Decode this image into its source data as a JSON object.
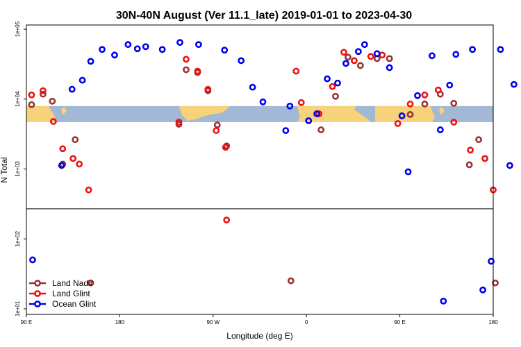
{
  "chart_data": {
    "type": "scatter",
    "title": "30N-40N August (Ver 11.1_late)   2019-01-01 to 2023-04-30",
    "xlabel": "Longitude (deg E)",
    "ylabel": "N Total",
    "xlim": [
      90,
      540
    ],
    "ylim_log10": [
      0.92,
      5.06
    ],
    "y_scale": "log",
    "inset_map_band_log10": [
      3.67,
      3.9
    ],
    "panel_divider_log10": 2.43,
    "x_ticks": [
      {
        "value": 90,
        "label": "90 E"
      },
      {
        "value": 180,
        "label": "180"
      },
      {
        "value": 270,
        "label": "90 W"
      },
      {
        "value": 360,
        "label": "0"
      },
      {
        "value": 450,
        "label": "90 E"
      },
      {
        "value": 540,
        "label": "180"
      }
    ],
    "y_ticks": [
      {
        "value_log10": 1,
        "label": "1e+01"
      },
      {
        "value_log10": 2,
        "label": "1e+02"
      },
      {
        "value_log10": 3,
        "label": "1e+03"
      },
      {
        "value_log10": 4,
        "label": "1e+04"
      },
      {
        "value_log10": 5,
        "label": "1e+05"
      }
    ],
    "legend": {
      "position": "bottom-left"
    },
    "series": [
      {
        "name": "Land Nadir",
        "color": "#993333",
        "points": [
          [
            95,
            3.92
          ],
          [
            106,
            4.07
          ],
          [
            115,
            3.97
          ],
          [
            125,
            3.07
          ],
          [
            137,
            3.42
          ],
          [
            152,
            1.37
          ],
          [
            237,
            3.64
          ],
          [
            244,
            4.42
          ],
          [
            255,
            4.38
          ],
          [
            265,
            4.12
          ],
          [
            274,
            3.63
          ],
          [
            283,
            3.33
          ],
          [
            345,
            1.4
          ],
          [
            374,
            3.56
          ],
          [
            388,
            4.04
          ],
          [
            400,
            4.6
          ],
          [
            412,
            4.48
          ],
          [
            428,
            4.58
          ],
          [
            440,
            4.58
          ],
          [
            460,
            3.78
          ],
          [
            474,
            3.93
          ],
          [
            489,
            4.07
          ],
          [
            502,
            3.94
          ],
          [
            517,
            3.06
          ],
          [
            526,
            3.42
          ],
          [
            542,
            1.37
          ]
        ]
      },
      {
        "name": "Land Glint",
        "color": "#ee1111",
        "points": [
          [
            95,
            4.06
          ],
          [
            106,
            4.12
          ],
          [
            116,
            3.68
          ],
          [
            125,
            3.29
          ],
          [
            135,
            3.15
          ],
          [
            141,
            3.07
          ],
          [
            150,
            2.7
          ],
          [
            237,
            3.67
          ],
          [
            244,
            4.57
          ],
          [
            255,
            4.4
          ],
          [
            265,
            4.14
          ],
          [
            273,
            3.55
          ],
          [
            282,
            3.31
          ],
          [
            283,
            2.27
          ],
          [
            350,
            4.4
          ],
          [
            355,
            3.95
          ],
          [
            372,
            3.79
          ],
          [
            385,
            4.18
          ],
          [
            396,
            4.67
          ],
          [
            406,
            4.55
          ],
          [
            422,
            4.61
          ],
          [
            433,
            4.63
          ],
          [
            448,
            3.65
          ],
          [
            460,
            3.93
          ],
          [
            474,
            4.06
          ],
          [
            487,
            4.13
          ],
          [
            502,
            3.67
          ],
          [
            518,
            3.27
          ],
          [
            532,
            3.15
          ],
          [
            540,
            2.7
          ]
        ]
      },
      {
        "name": "Ocean Glint",
        "color": "#0000ee",
        "points": [
          [
            96,
            1.7
          ],
          [
            124,
            3.05
          ],
          [
            134,
            4.14
          ],
          [
            144,
            4.27
          ],
          [
            152,
            4.54
          ],
          [
            163,
            4.71
          ],
          [
            175,
            4.63
          ],
          [
            188,
            4.78
          ],
          [
            197,
            4.72
          ],
          [
            205,
            4.75
          ],
          [
            221,
            4.71
          ],
          [
            238,
            4.81
          ],
          [
            256,
            4.78
          ],
          [
            281,
            4.7
          ],
          [
            297,
            4.55
          ],
          [
            308,
            4.17
          ],
          [
            318,
            3.96
          ],
          [
            340,
            3.55
          ],
          [
            344,
            3.9
          ],
          [
            362,
            3.69
          ],
          [
            370,
            3.79
          ],
          [
            380,
            4.29
          ],
          [
            390,
            4.23
          ],
          [
            398,
            4.51
          ],
          [
            410,
            4.68
          ],
          [
            416,
            4.78
          ],
          [
            428,
            4.65
          ],
          [
            440,
            4.45
          ],
          [
            452,
            3.76
          ],
          [
            458,
            2.96
          ],
          [
            467,
            4.05
          ],
          [
            481,
            4.62
          ],
          [
            489,
            3.56
          ],
          [
            492,
            1.11
          ],
          [
            498,
            4.2
          ],
          [
            504,
            4.64
          ],
          [
            520,
            4.71
          ],
          [
            530,
            1.27
          ],
          [
            538,
            1.68
          ],
          [
            547,
            4.71
          ],
          [
            556,
            3.05
          ],
          [
            560,
            4.21
          ]
        ]
      }
    ]
  }
}
